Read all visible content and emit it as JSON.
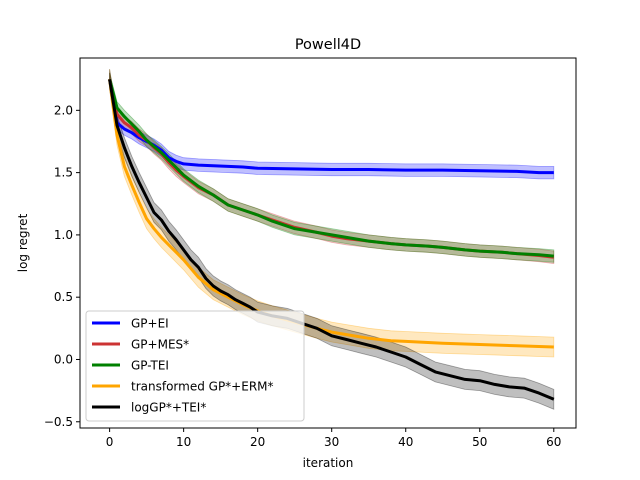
{
  "chart_data": {
    "type": "line",
    "title": "Powell4D",
    "xlabel": "iteration",
    "ylabel": "log regret",
    "xlim": [
      -4,
      63
    ],
    "ylim": [
      -0.55,
      2.42
    ],
    "xticks": [
      0,
      10,
      20,
      30,
      40,
      50,
      60
    ],
    "yticks": [
      -0.5,
      0.0,
      0.5,
      1.0,
      1.5,
      2.0
    ],
    "xtick_labels": [
      "0",
      "10",
      "20",
      "30",
      "40",
      "50",
      "60"
    ],
    "ytick_labels": [
      "−0.5",
      "0.0",
      "0.5",
      "1.0",
      "1.5",
      "2.0"
    ],
    "grid": false,
    "legend_position": "lower-left",
    "series": [
      {
        "name": "GP+EI",
        "color": "#0000ff",
        "band_width": 0.05,
        "x": [
          0,
          1,
          2,
          3,
          4,
          5,
          6,
          7,
          8,
          9,
          10,
          12,
          14,
          16,
          18,
          20,
          25,
          30,
          35,
          40,
          45,
          50,
          55,
          58,
          60
        ],
        "y": [
          2.25,
          1.9,
          1.85,
          1.82,
          1.78,
          1.75,
          1.72,
          1.68,
          1.62,
          1.59,
          1.57,
          1.56,
          1.555,
          1.55,
          1.545,
          1.535,
          1.53,
          1.525,
          1.525,
          1.52,
          1.52,
          1.515,
          1.51,
          1.5,
          1.5
        ]
      },
      {
        "name": "GP+MES*",
        "color": "#cc3333",
        "band_width": 0.05,
        "x": [
          0,
          1,
          2,
          3,
          4,
          5,
          6,
          7,
          8,
          9,
          10,
          12,
          14,
          16,
          18,
          20,
          22,
          25,
          28,
          30,
          32,
          35,
          38,
          40,
          43,
          45,
          48,
          50,
          53,
          55,
          58,
          60
        ],
        "y": [
          2.25,
          1.97,
          1.9,
          1.86,
          1.8,
          1.76,
          1.7,
          1.65,
          1.58,
          1.52,
          1.47,
          1.38,
          1.32,
          1.24,
          1.2,
          1.16,
          1.12,
          1.06,
          1.02,
          0.99,
          0.97,
          0.95,
          0.93,
          0.92,
          0.91,
          0.9,
          0.88,
          0.87,
          0.86,
          0.85,
          0.835,
          0.82
        ]
      },
      {
        "name": "GP-TEI",
        "color": "#008000",
        "band_width": 0.05,
        "x": [
          0,
          1,
          2,
          3,
          4,
          5,
          6,
          7,
          8,
          9,
          10,
          12,
          14,
          16,
          18,
          20,
          22,
          25,
          28,
          30,
          32,
          35,
          38,
          40,
          43,
          45,
          48,
          50,
          53,
          55,
          58,
          60
        ],
        "y": [
          2.25,
          2.02,
          1.95,
          1.89,
          1.83,
          1.76,
          1.71,
          1.66,
          1.6,
          1.54,
          1.48,
          1.39,
          1.32,
          1.24,
          1.2,
          1.16,
          1.11,
          1.05,
          1.02,
          1.0,
          0.98,
          0.95,
          0.93,
          0.92,
          0.91,
          0.9,
          0.88,
          0.87,
          0.86,
          0.85,
          0.84,
          0.83
        ]
      },
      {
        "name": "transformed GP*+ERM*",
        "color": "#ffa500",
        "band_width": 0.08,
        "x": [
          0,
          1,
          2,
          3,
          4,
          5,
          6,
          7,
          8,
          9,
          10,
          12,
          14,
          16,
          18,
          20,
          22,
          25,
          28,
          30,
          32,
          35,
          38,
          40,
          45,
          50,
          55,
          60
        ],
        "y": [
          2.25,
          1.8,
          1.55,
          1.4,
          1.26,
          1.13,
          1.05,
          0.98,
          0.92,
          0.86,
          0.8,
          0.66,
          0.56,
          0.5,
          0.44,
          0.39,
          0.35,
          0.3,
          0.25,
          0.22,
          0.2,
          0.17,
          0.15,
          0.145,
          0.13,
          0.12,
          0.11,
          0.1
        ]
      },
      {
        "name": "logGP*+TEI*",
        "color": "#000000",
        "band_width": 0.08,
        "x": [
          0,
          1,
          2,
          3,
          4,
          5,
          6,
          7,
          8,
          9,
          10,
          11,
          12,
          13,
          14,
          15,
          16,
          17,
          18,
          19,
          20,
          22,
          24,
          26,
          28,
          30,
          32,
          34,
          36,
          38,
          40,
          42,
          44,
          46,
          48,
          50,
          52,
          54,
          56,
          58,
          60
        ],
        "y": [
          2.25,
          1.88,
          1.7,
          1.55,
          1.42,
          1.3,
          1.18,
          1.12,
          1.03,
          0.96,
          0.88,
          0.8,
          0.74,
          0.65,
          0.59,
          0.55,
          0.52,
          0.48,
          0.45,
          0.42,
          0.38,
          0.35,
          0.33,
          0.29,
          0.25,
          0.19,
          0.16,
          0.13,
          0.1,
          0.06,
          0.02,
          -0.04,
          -0.1,
          -0.13,
          -0.16,
          -0.17,
          -0.2,
          -0.22,
          -0.23,
          -0.27,
          -0.32
        ]
      }
    ]
  }
}
